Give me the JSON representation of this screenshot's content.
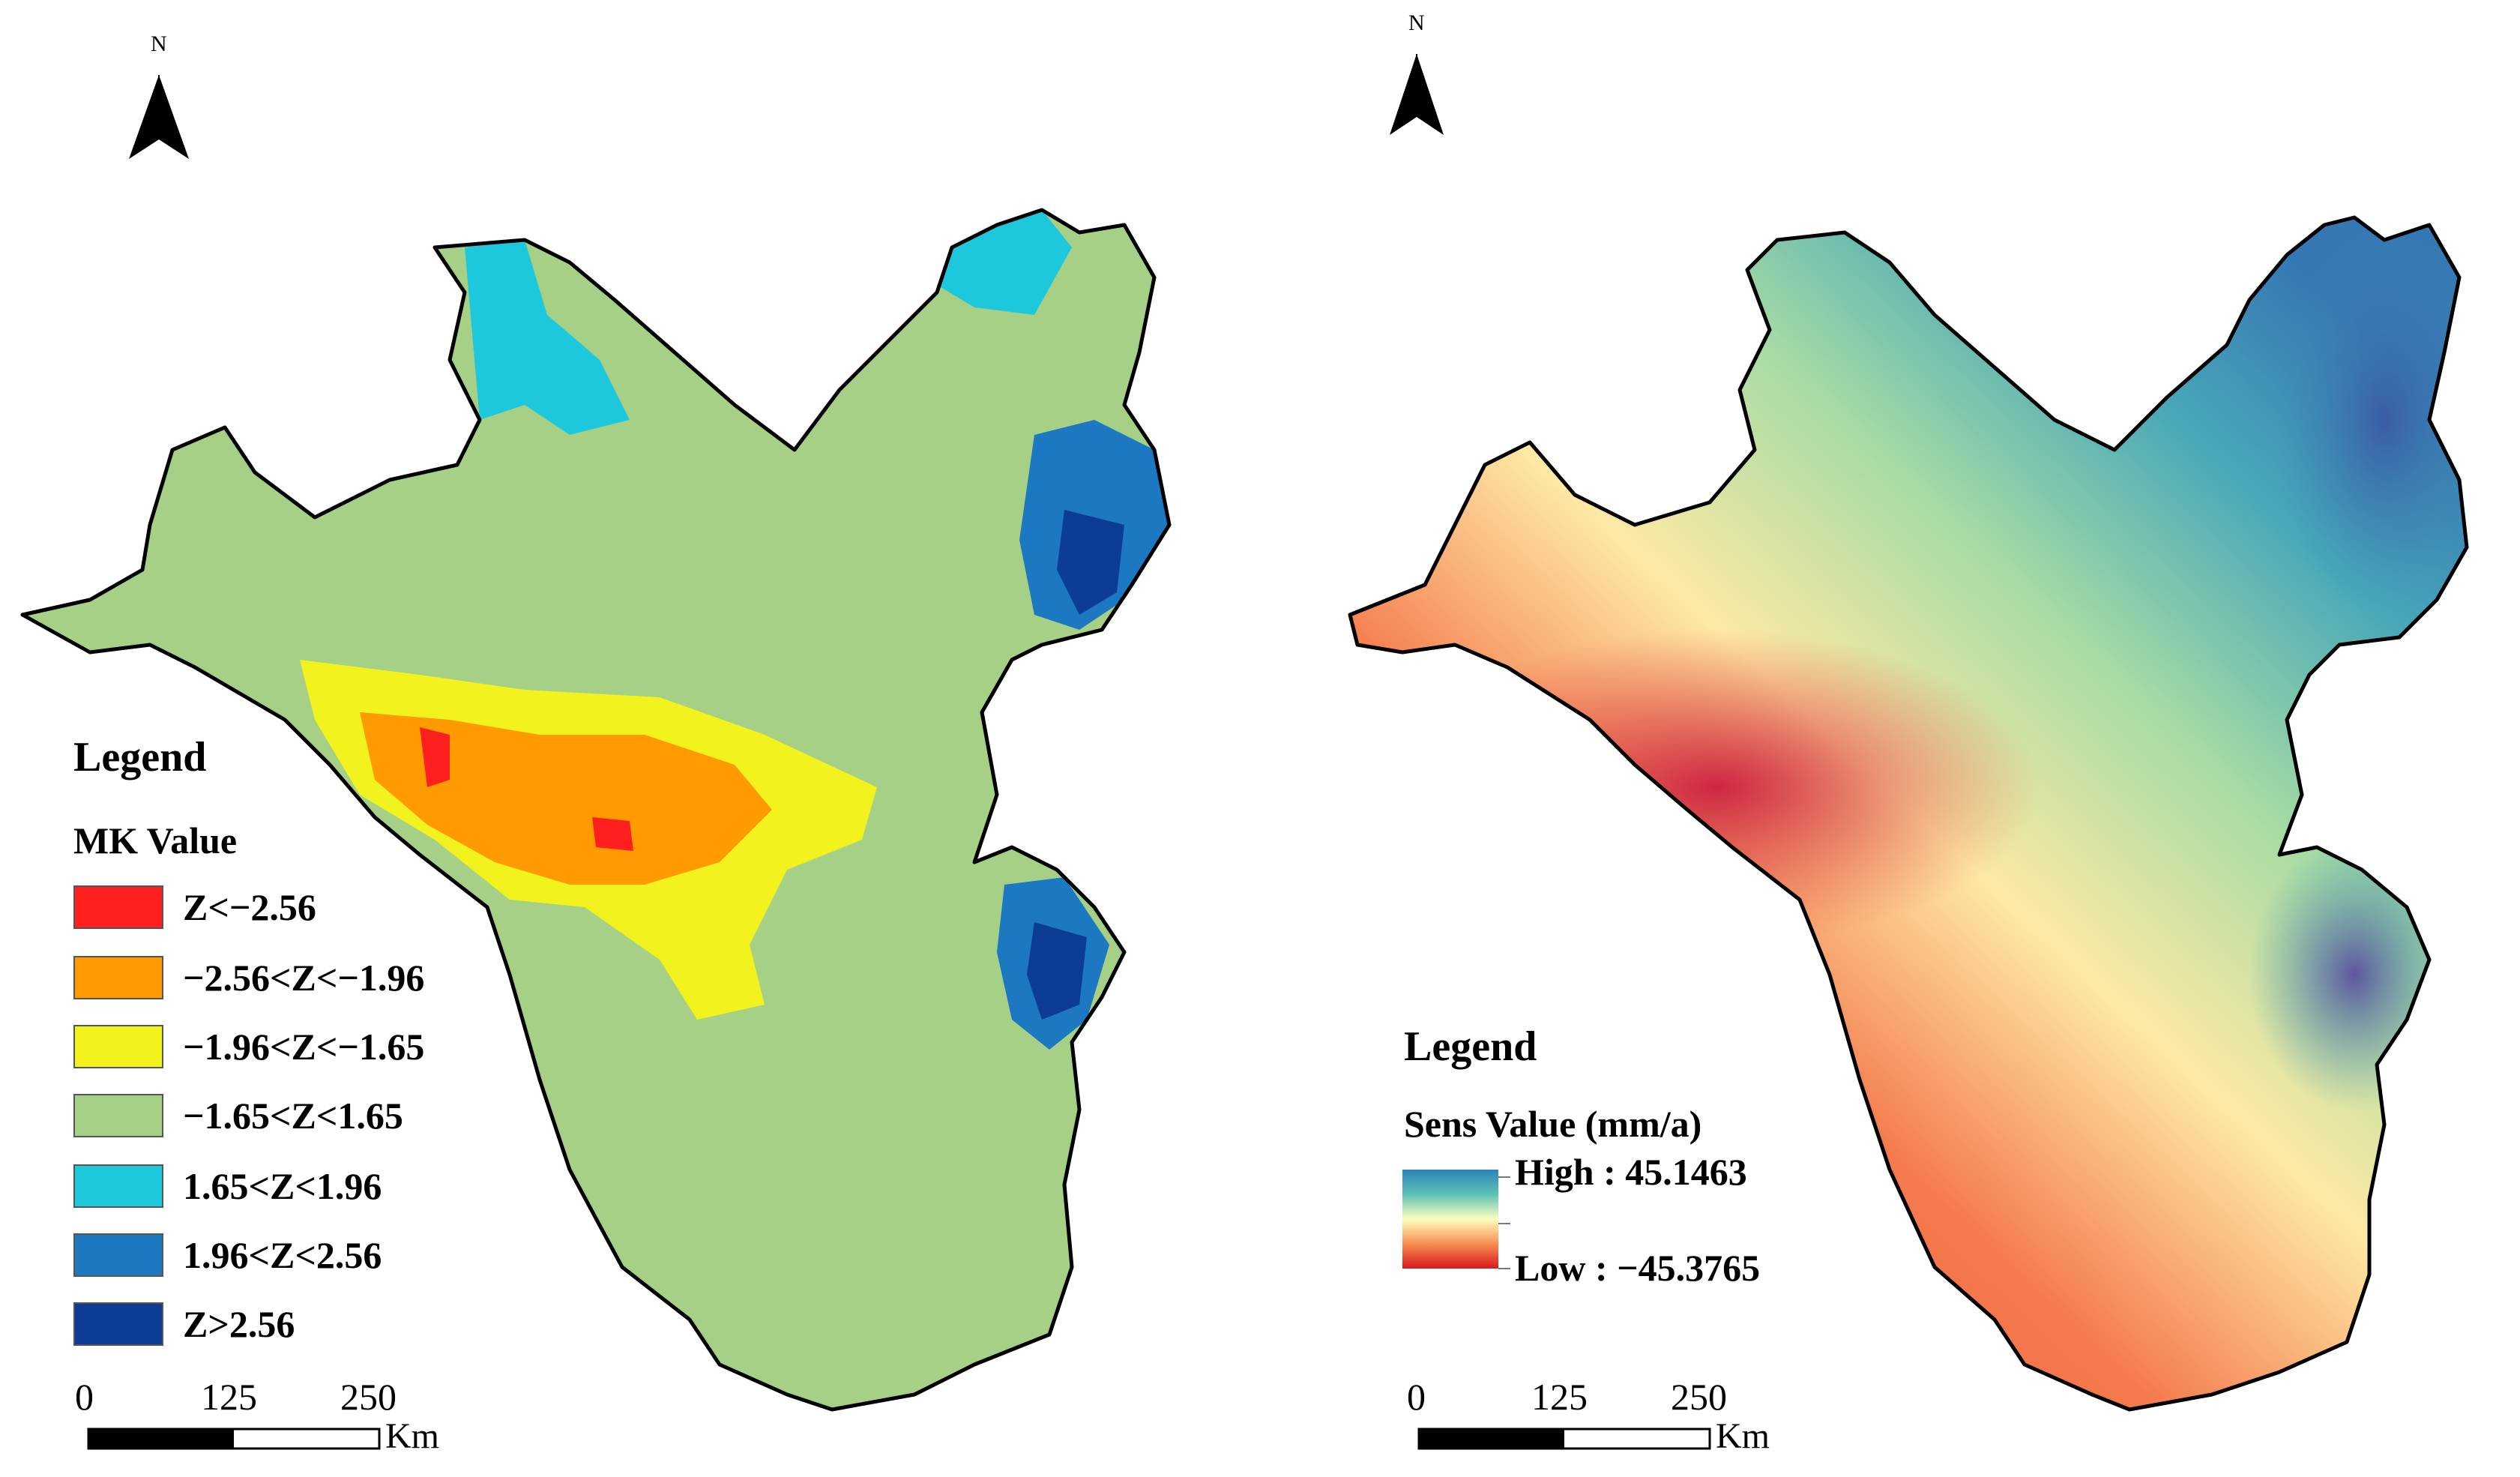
{
  "left_map": {
    "north_label": "N",
    "legend": {
      "title": "Legend",
      "subtitle": "MK Value",
      "classes": [
        {
          "label": "Z<−2.56",
          "color": "#ff1f1f"
        },
        {
          "label": "−2.56<Z<−1.96",
          "color": "#ff9a00"
        },
        {
          "label": "−1.96<Z<−1.65",
          "color": "#f2f21e"
        },
        {
          "label": "−1.65<Z<1.65",
          "color": "#a6d085"
        },
        {
          "label": "1.65<Z<1.96",
          "color": "#1ec8dc"
        },
        {
          "label": "1.96<Z<2.56",
          "color": "#1c78c0"
        },
        {
          "label": "Z>2.56",
          "color": "#0c3c96"
        }
      ]
    },
    "scale_bar": {
      "ticks": [
        "0",
        "125",
        "250"
      ],
      "unit": "Km"
    }
  },
  "right_map": {
    "north_label": "N",
    "legend": {
      "title": "Legend",
      "subtitle": "Sens Value (mm/a)",
      "high_label": "High : 45.1463",
      "low_label": "Low : −45.3765",
      "ramp_colors": [
        "#2b83ba",
        "#5ec2b4",
        "#fefebe",
        "#f98e52",
        "#d7191c"
      ]
    },
    "scale_bar": {
      "ticks": [
        "0",
        "125",
        "250"
      ],
      "unit": "Km"
    }
  }
}
